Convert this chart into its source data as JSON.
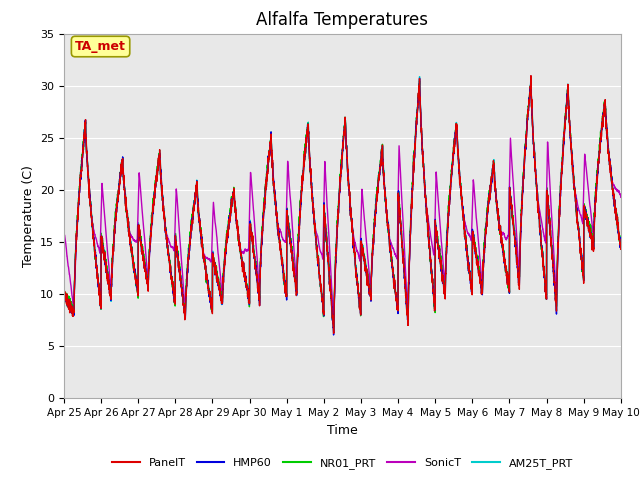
{
  "title": "Alfalfa Temperatures",
  "xlabel": "Time",
  "ylabel": "Temperature (C)",
  "ylim": [
    0,
    35
  ],
  "yticks": [
    0,
    5,
    10,
    15,
    20,
    25,
    30,
    35
  ],
  "annotation_text": "TA_met",
  "annotation_color": "#cc0000",
  "annotation_bg": "#ffff99",
  "lines": {
    "PanelT": {
      "color": "#dd0000",
      "lw": 1.0
    },
    "HMP60": {
      "color": "#0000dd",
      "lw": 1.0
    },
    "NR01_PRT": {
      "color": "#00cc00",
      "lw": 1.0
    },
    "SonicT": {
      "color": "#bb00bb",
      "lw": 1.0
    },
    "AM25T_PRT": {
      "color": "#00cccc",
      "lw": 1.0
    }
  },
  "background_color": "#e8e8e8",
  "figure_bg": "#ffffff",
  "title_fontsize": 12,
  "axis_label_fontsize": 9,
  "tick_labels": [
    "Apr 25",
    "Apr 26",
    "Apr 27",
    "Apr 28",
    "Apr 29",
    "Apr 30",
    "May 1",
    "May 2",
    "May 3",
    "May 4",
    "May 5",
    "May 6",
    "May 7",
    "May 8",
    "May 9",
    "May 10"
  ],
  "day_peaks": [
    26.5,
    23.0,
    23.5,
    20.5,
    20.0,
    25.0,
    26.5,
    27.0,
    24.0,
    30.5,
    26.5,
    22.5,
    30.5,
    30.0,
    28.5
  ],
  "day_mins": [
    8.0,
    9.5,
    10.5,
    7.5,
    9.0,
    9.5,
    10.0,
    6.2,
    9.5,
    7.0,
    9.8,
    10.0,
    10.8,
    8.5,
    14.5
  ],
  "sonic_night_base": 15.0
}
